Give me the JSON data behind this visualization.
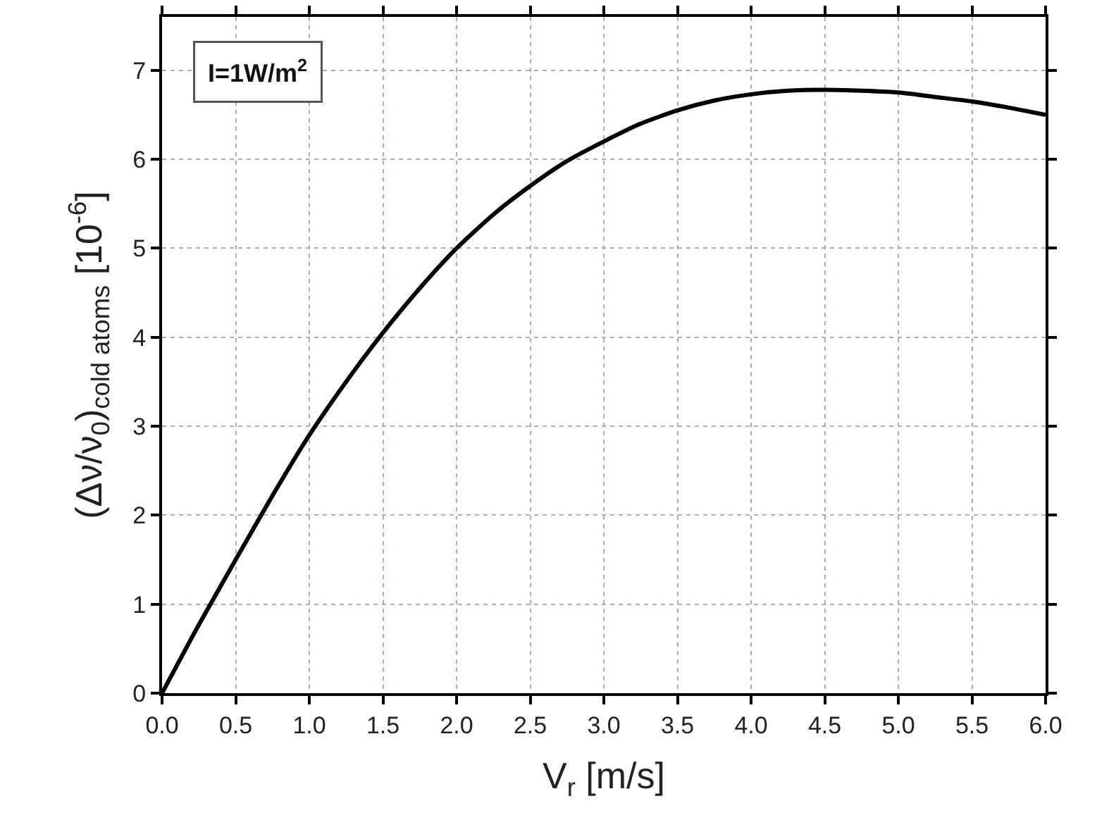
{
  "chart_data": {
    "type": "line",
    "xlabel": "V$_{r}$ [m/s]",
    "ylabel": "(Δν/ν$_{0}$)$_{cold atoms}$ [10$^{-6}$]",
    "annotations": [
      "I=1W/m$^{2}$"
    ],
    "series": [
      {
        "color": "#000000",
        "x": [
          0,
          0.25,
          0.5,
          0.75,
          1.0,
          1.25,
          1.5,
          1.75,
          2.0,
          2.25,
          2.5,
          2.75,
          3.0,
          3.25,
          3.5,
          3.75,
          4.0,
          4.25,
          4.5,
          4.75,
          5.0,
          5.25,
          5.5,
          5.75,
          6.0
        ],
        "values": [
          0,
          0.77,
          1.5,
          2.22,
          2.9,
          3.5,
          4.05,
          4.55,
          5.0,
          5.38,
          5.7,
          5.98,
          6.2,
          6.4,
          6.55,
          6.66,
          6.73,
          6.77,
          6.78,
          6.77,
          6.75,
          6.7,
          6.65,
          6.58,
          6.5
        ]
      }
    ],
    "xlim": [
      0,
      6
    ],
    "xticks": [
      {
        "value": 0,
        "label": "0.0"
      },
      {
        "value": 0.5,
        "label": "0.5"
      },
      {
        "value": 1,
        "label": "1.0"
      },
      {
        "value": 1.5,
        "label": "1.5"
      },
      {
        "value": 2,
        "label": "2.0"
      },
      {
        "value": 2.5,
        "label": "2.5"
      },
      {
        "value": 3,
        "label": "3.0"
      },
      {
        "value": 3.5,
        "label": "3.5"
      },
      {
        "value": 4,
        "label": "4.0"
      },
      {
        "value": 4.5,
        "label": "4.5"
      },
      {
        "value": 5,
        "label": "5.0"
      },
      {
        "value": 5.5,
        "label": "5.5"
      },
      {
        "value": 6,
        "label": "6.0"
      }
    ],
    "ylim": [
      0,
      7.6
    ],
    "yticks": [
      0,
      1,
      2,
      3,
      4,
      5,
      6,
      7
    ],
    "grid": true,
    "marker": "none",
    "line_style": "solid"
  }
}
